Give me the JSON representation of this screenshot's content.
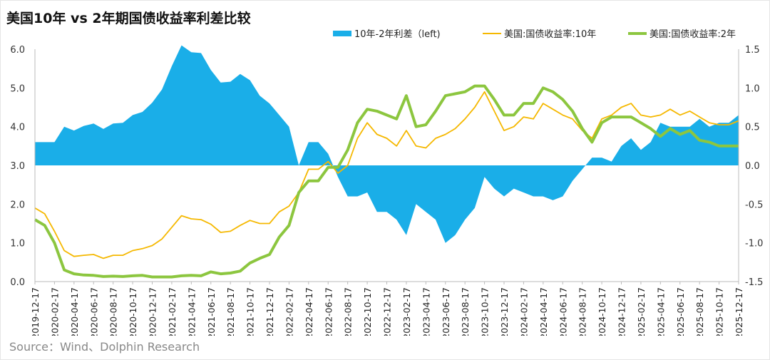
{
  "title": "美国10年 vs 2年期国债收益率利差比较",
  "source": "Source：Wind、Dolphin Research",
  "chart_data": {
    "type": "area+line",
    "title": "美国10年 vs 2年期国债收益率利差比较",
    "legend_position": "top-right",
    "colors": {
      "spread": "#1aaee8",
      "y10": "#f5b800",
      "y2": "#8cc63f"
    },
    "legend": [
      "10年-2年利差（left)",
      "美国:国债收益率:10年",
      "美国:国债收益率:2年"
    ],
    "left_axis": {
      "range": [
        0,
        6
      ],
      "ticks": [
        "0.0",
        "1.0",
        "2.0",
        "3.0",
        "4.0",
        "5.0",
        "6.0"
      ]
    },
    "right_axis": {
      "range": [
        -1.5,
        1.5
      ],
      "ticks": [
        "-1.5",
        "-1.0",
        "-0.5",
        "0.0",
        "0.5",
        "1.0",
        "1.5"
      ]
    },
    "x_ticks": [
      "2019-12-17",
      "2020-02-17",
      "2020-04-17",
      "2020-06-17",
      "2020-08-17",
      "2020-10-17",
      "2020-12-17",
      "2021-02-17",
      "2021-04-17",
      "2021-06-17",
      "2021-08-17",
      "2021-10-17",
      "2021-12-17",
      "2022-02-17",
      "2022-04-17",
      "2022-06-17",
      "2022-08-17",
      "2022-10-17",
      "2022-12-17",
      "2023-02-17",
      "2023-04-17",
      "2023-06-17",
      "2023-08-17",
      "2023-10-17",
      "2023-12-17",
      "2024-02-17",
      "2024-04-17",
      "2024-06-17",
      "2024-08-17",
      "2024-10-17",
      "2024-12-17",
      "2025-02-17",
      "2025-04-17",
      "2025-06-17",
      "2025-08-17",
      "2025-10-17",
      "2025-12-17"
    ],
    "x_start": "2019-12",
    "x_step": "1 month",
    "series": [
      {
        "name": "10年-2年利差（left)",
        "axis": "right",
        "type": "area",
        "values": [
          0.3,
          0.3,
          0.3,
          0.5,
          0.45,
          0.51,
          0.54,
          0.47,
          0.54,
          0.55,
          0.65,
          0.69,
          0.81,
          0.98,
          1.28,
          1.55,
          1.46,
          1.45,
          1.23,
          1.07,
          1.08,
          1.18,
          1.1,
          0.9,
          0.8,
          0.65,
          0.5,
          0.0,
          0.3,
          0.3,
          0.15,
          -0.15,
          -0.4,
          -0.4,
          -0.35,
          -0.6,
          -0.6,
          -0.7,
          -0.9,
          -0.5,
          -0.6,
          -0.7,
          -1.0,
          -0.9,
          -0.7,
          -0.55,
          -0.15,
          -0.3,
          -0.4,
          -0.3,
          -0.35,
          -0.4,
          -0.4,
          -0.45,
          -0.4,
          -0.2,
          -0.05,
          0.1,
          0.1,
          0.05,
          0.25,
          0.35,
          0.2,
          0.3,
          0.55,
          0.5,
          0.5,
          0.5,
          0.6,
          0.5,
          0.55,
          0.55,
          0.65
        ]
      },
      {
        "name": "美国:国债收益率:10年",
        "axis": "left",
        "type": "line",
        "values": [
          1.9,
          1.75,
          1.3,
          0.8,
          0.65,
          0.68,
          0.7,
          0.6,
          0.68,
          0.68,
          0.8,
          0.85,
          0.93,
          1.1,
          1.4,
          1.7,
          1.62,
          1.6,
          1.48,
          1.27,
          1.3,
          1.45,
          1.58,
          1.5,
          1.5,
          1.8,
          1.95,
          2.3,
          2.9,
          2.9,
          3.1,
          2.8,
          3.0,
          3.7,
          4.1,
          3.8,
          3.7,
          3.5,
          3.9,
          3.5,
          3.45,
          3.7,
          3.8,
          3.95,
          4.2,
          4.5,
          4.9,
          4.4,
          3.9,
          4.0,
          4.25,
          4.2,
          4.6,
          4.45,
          4.3,
          4.2,
          3.9,
          3.7,
          4.2,
          4.3,
          4.5,
          4.6,
          4.3,
          4.25,
          4.3,
          4.45,
          4.3,
          4.4,
          4.25,
          4.1,
          4.05,
          4.05,
          4.15
        ]
      },
      {
        "name": "美国:国债收益率:2年",
        "axis": "left",
        "type": "line",
        "values": [
          1.6,
          1.45,
          1.0,
          0.3,
          0.2,
          0.17,
          0.16,
          0.13,
          0.14,
          0.13,
          0.15,
          0.16,
          0.12,
          0.12,
          0.12,
          0.15,
          0.16,
          0.15,
          0.25,
          0.2,
          0.22,
          0.27,
          0.48,
          0.6,
          0.7,
          1.15,
          1.45,
          2.3,
          2.6,
          2.6,
          2.95,
          2.95,
          3.4,
          4.1,
          4.45,
          4.4,
          4.3,
          4.2,
          4.8,
          4.0,
          4.05,
          4.4,
          4.8,
          4.85,
          4.9,
          5.05,
          5.05,
          4.7,
          4.3,
          4.3,
          4.6,
          4.6,
          5.0,
          4.9,
          4.7,
          4.4,
          3.95,
          3.6,
          4.1,
          4.25,
          4.25,
          4.25,
          4.1,
          3.95,
          3.75,
          3.95,
          3.8,
          3.9,
          3.65,
          3.6,
          3.5,
          3.5,
          3.5
        ]
      }
    ]
  }
}
